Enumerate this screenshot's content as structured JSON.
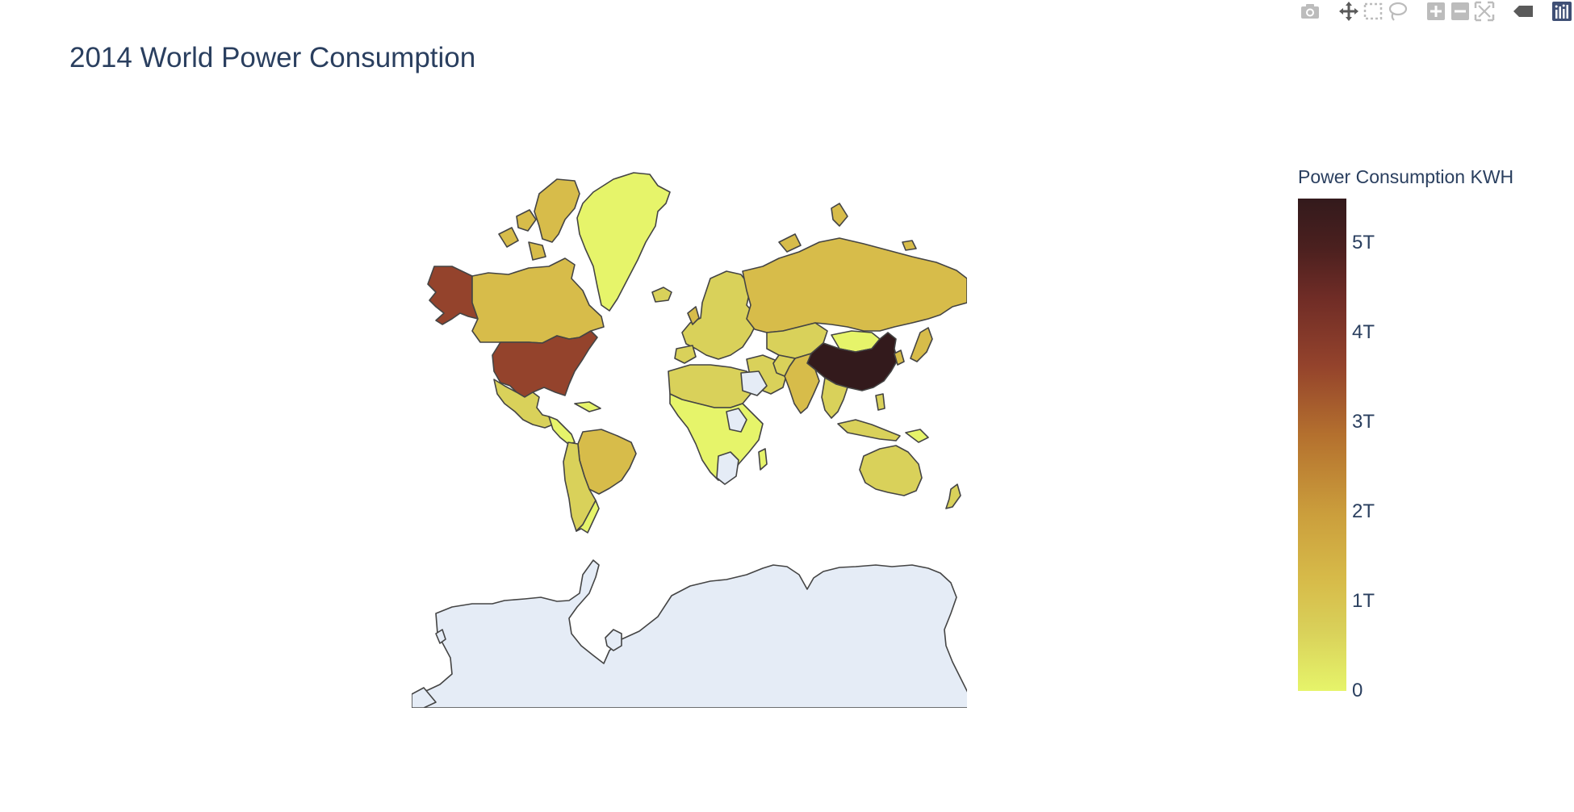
{
  "title": "2014 World Power Consumption",
  "modebar": {
    "buttons": [
      {
        "icon": "camera-icon",
        "label": "Download plot as a png"
      },
      {
        "icon": "pan-icon",
        "label": "Pan"
      },
      {
        "icon": "box-select-icon",
        "label": "Box Select"
      },
      {
        "icon": "lasso-select-icon",
        "label": "Lasso Select"
      },
      {
        "icon": "zoom-in-icon",
        "label": "Zoom in"
      },
      {
        "icon": "zoom-out-icon",
        "label": "Zoom out"
      },
      {
        "icon": "reset-view-icon",
        "label": "Reset"
      },
      {
        "icon": "hover-compare-icon",
        "label": "Show closest data on hover"
      },
      {
        "icon": "plotly-logo-icon",
        "label": "Produced with Plotly"
      }
    ]
  },
  "colorbar": {
    "title": "Power Consumption KWH",
    "ticks": [
      "0",
      "1T",
      "2T",
      "3T",
      "4T",
      "5T"
    ],
    "tick_values": [
      0,
      1000000000000,
      2000000000000,
      3000000000000,
      4000000000000,
      5000000000000
    ],
    "range": [
      0,
      5500000000000
    ],
    "colorscale": [
      "#e6f46a",
      "#d9d15a",
      "#d7bc4a",
      "#cb9e3c",
      "#b4702e",
      "#94432c",
      "#6f2c26",
      "#4b201f",
      "#331a1c"
    ]
  },
  "colors": {
    "no_data": "#e5ecf6",
    "border": "#444444",
    "text": "#2a3f5f"
  },
  "chart_data": {
    "type": "choropleth",
    "projection": "mercator",
    "title": "2014 World Power Consumption",
    "colorbar_title": "Power Consumption KWH",
    "locations": [
      {
        "name": "China",
        "value": 5500000000000
      },
      {
        "name": "United States",
        "value": 3900000000000
      },
      {
        "name": "Russia",
        "value": 1100000000000
      },
      {
        "name": "India",
        "value": 1000000000000
      },
      {
        "name": "Japan",
        "value": 1000000000000
      },
      {
        "name": "Canada",
        "value": 550000000000
      },
      {
        "name": "Brazil",
        "value": 500000000000
      },
      {
        "name": "Greenland",
        "value": 0
      },
      {
        "name": "Australia",
        "value": 250000000000
      }
    ]
  }
}
